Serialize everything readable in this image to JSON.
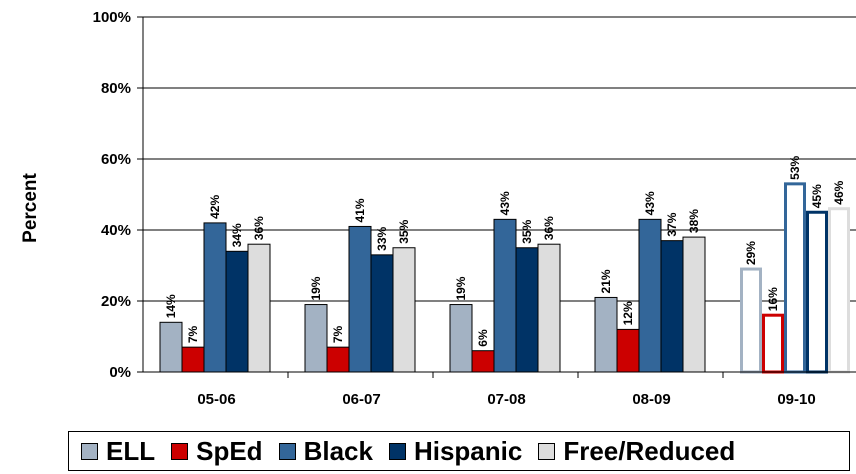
{
  "chart_data": {
    "type": "bar",
    "categories": [
      "05-06",
      "06-07",
      "07-08",
      "08-09",
      "09-10"
    ],
    "series": [
      {
        "name": "ELL",
        "values": [
          14,
          19,
          19,
          21,
          29
        ],
        "color": "#a3b2c3"
      },
      {
        "name": "SpEd",
        "values": [
          7,
          7,
          6,
          12,
          16
        ],
        "color": "#cc0000"
      },
      {
        "name": "Black",
        "values": [
          42,
          41,
          43,
          43,
          53
        ],
        "color": "#336699"
      },
      {
        "name": "Hispanic",
        "values": [
          34,
          33,
          35,
          37,
          45
        ],
        "color": "#003366"
      },
      {
        "name": "Free/Reduced",
        "values": [
          36,
          35,
          36,
          38,
          46
        ],
        "color": "#dddddd"
      }
    ],
    "outline_categories": [
      "09-10"
    ],
    "ylabel": "Percent",
    "xlabel": "",
    "ylim": [
      0,
      100
    ],
    "yticks": [
      "0%",
      "20%",
      "40%",
      "60%",
      "80%",
      "100%"
    ],
    "data_label_suffix": "%",
    "grid": true,
    "legend_position": "bottom"
  }
}
